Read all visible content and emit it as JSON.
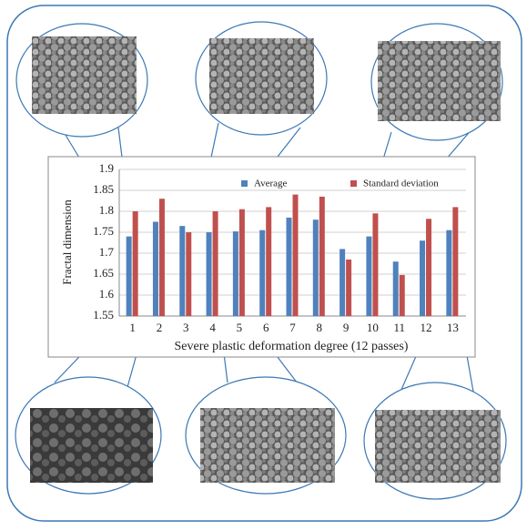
{
  "chart_data": {
    "type": "bar",
    "y_label": "Fractal dimension",
    "x_label": "Severe plastic deformation degree (12 passes)",
    "categories": [
      "1",
      "2",
      "3",
      "4",
      "5",
      "6",
      "7",
      "8",
      "9",
      "10",
      "11",
      "12",
      "13"
    ],
    "series": [
      {
        "name": "Average",
        "color": "#4f81bd",
        "values": [
          1.74,
          1.775,
          1.765,
          1.75,
          1.752,
          1.755,
          1.785,
          1.78,
          1.71,
          1.74,
          1.68,
          1.73,
          1.755
        ]
      },
      {
        "name": "Standard deviation",
        "color": "#c0504d",
        "values": [
          1.8,
          1.83,
          1.75,
          1.8,
          1.805,
          1.81,
          1.84,
          1.835,
          1.685,
          1.795,
          1.648,
          1.782,
          1.81
        ]
      }
    ],
    "ylim": [
      1.55,
      1.9
    ],
    "yticks": [
      1.55,
      1.6,
      1.65,
      1.7,
      1.75,
      1.8,
      1.85,
      1.9
    ],
    "grid": true,
    "legend": "top"
  }
}
